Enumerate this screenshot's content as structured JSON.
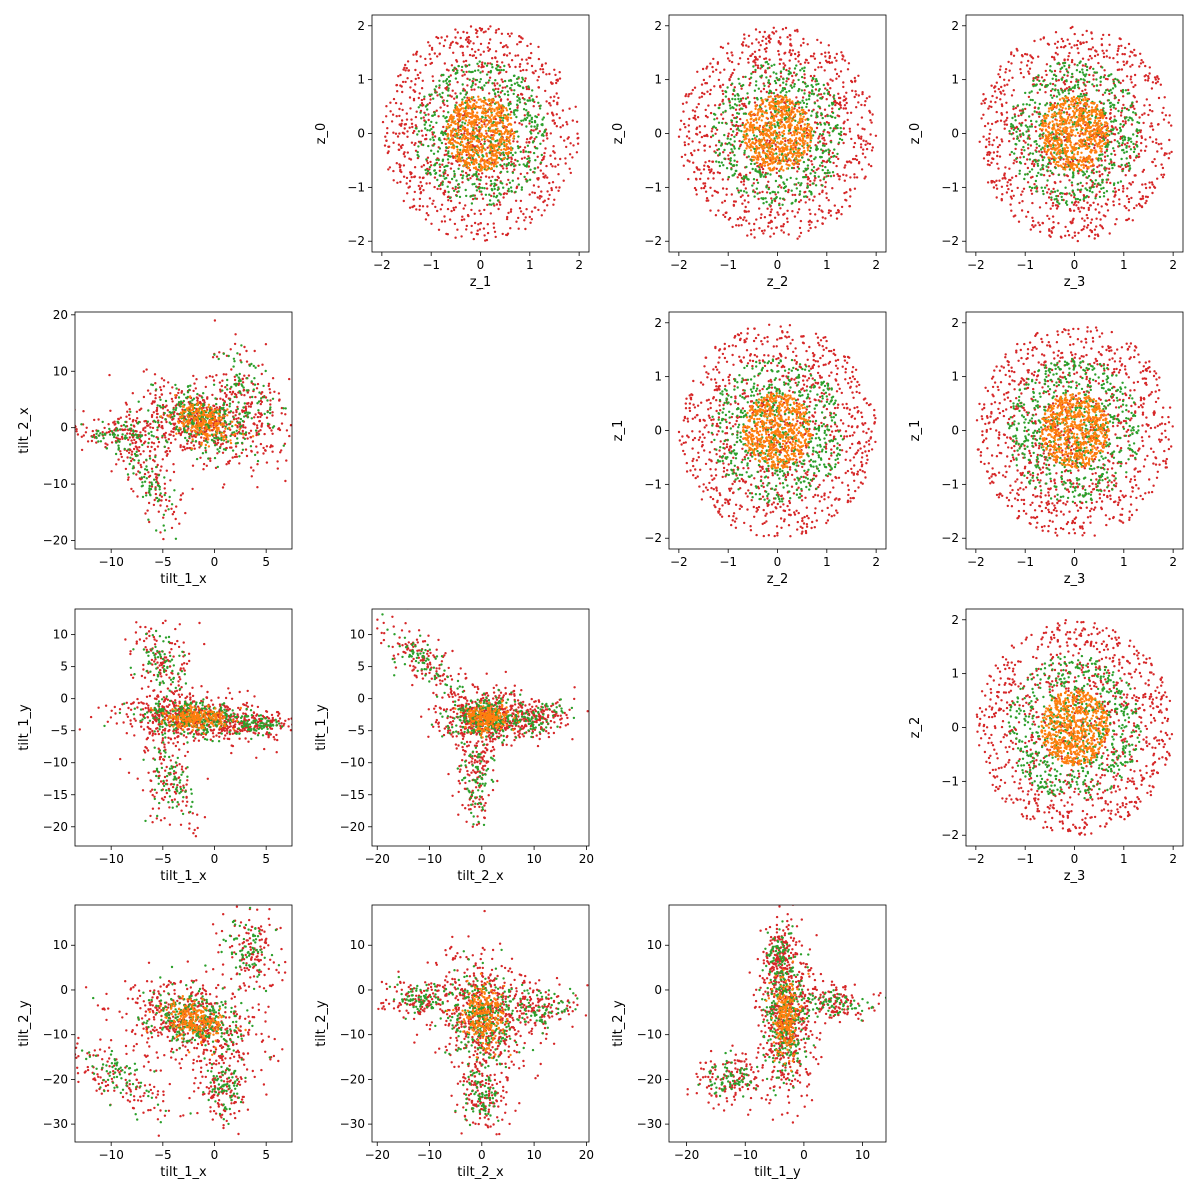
{
  "chart_data": {
    "type": "scatter",
    "colors": {
      "inner": "#ff7f0e",
      "middle": "#2ca02c",
      "outer": "#d62728"
    },
    "series": [
      {
        "color_key": "outer",
        "description_from_image": "red points (largest spread)"
      },
      {
        "color_key": "middle",
        "description_from_image": "green points"
      },
      {
        "color_key": "inner",
        "description_from_image": "orange points (core)"
      }
    ],
    "panels": [
      {
        "xlabel": "z_1",
        "ylabel": "z_0",
        "xlim": [
          -2.2,
          2.2
        ],
        "ylim": [
          -2.2,
          2.2
        ],
        "xticks": [
          -2,
          -1,
          0,
          1,
          2
        ],
        "yticks": [
          -2,
          -1,
          0,
          1,
          2
        ],
        "shape": "ring",
        "radii": [
          0.7,
          1.35,
          2.0
        ]
      },
      {
        "xlabel": "z_2",
        "ylabel": "z_0",
        "xlim": [
          -2.2,
          2.2
        ],
        "ylim": [
          -2.2,
          2.2
        ],
        "xticks": [
          -2,
          -1,
          0,
          1,
          2
        ],
        "yticks": [
          -2,
          -1,
          0,
          1,
          2
        ],
        "shape": "ring",
        "radii": [
          0.7,
          1.35,
          2.0
        ]
      },
      {
        "xlabel": "z_3",
        "ylabel": "z_0",
        "xlim": [
          -2.2,
          2.2
        ],
        "ylim": [
          -2.2,
          2.2
        ],
        "xticks": [
          -2,
          -1,
          0,
          1,
          2
        ],
        "yticks": [
          -2,
          -1,
          0,
          1,
          2
        ],
        "shape": "ring",
        "radii": [
          0.7,
          1.35,
          2.0
        ]
      },
      {
        "xlabel": "tilt_1_x",
        "ylabel": "tilt_2_x",
        "xlim": [
          -13.5,
          7.5
        ],
        "ylim": [
          -21.5,
          20.5
        ],
        "xticks": [
          -10,
          -5,
          0,
          5
        ],
        "yticks": [
          -20,
          -10,
          0,
          10,
          20
        ],
        "shape": "blob",
        "clusters": [
          {
            "center": [
              -1.0,
              1.0
            ],
            "spread": [
              2.8,
              4.0
            ],
            "rot": 0.5
          },
          {
            "center": [
              3.5,
              6.5
            ],
            "spread": [
              1.8,
              5.0
            ],
            "rot": 0.3
          },
          {
            "center": [
              -6.5,
              -8.5
            ],
            "spread": [
              1.2,
              5.5
            ],
            "rot": 0.25
          },
          {
            "center": [
              -9.0,
              -1.0
            ],
            "spread": [
              2.5,
              1.8
            ],
            "rot": 0.0
          }
        ]
      },
      {
        "xlabel": "z_2",
        "ylabel": "z_1",
        "xlim": [
          -2.2,
          2.2
        ],
        "ylim": [
          -2.2,
          2.2
        ],
        "xticks": [
          -2,
          -1,
          0,
          1,
          2
        ],
        "yticks": [
          -2,
          -1,
          0,
          1,
          2
        ],
        "shape": "ring",
        "radii": [
          0.7,
          1.35,
          2.0
        ]
      },
      {
        "xlabel": "z_3",
        "ylabel": "z_1",
        "xlim": [
          -2.2,
          2.2
        ],
        "ylim": [
          -2.2,
          2.2
        ],
        "xticks": [
          -2,
          -1,
          0,
          1,
          2
        ],
        "yticks": [
          -2,
          -1,
          0,
          1,
          2
        ],
        "shape": "ring",
        "radii": [
          0.7,
          1.35,
          2.0
        ]
      },
      {
        "xlabel": "tilt_1_x",
        "ylabel": "tilt_1_y",
        "xlim": [
          -13.5,
          7.5
        ],
        "ylim": [
          -23.0,
          14.0
        ],
        "xticks": [
          -10,
          -5,
          0,
          5
        ],
        "yticks": [
          -20,
          -15,
          -10,
          -5,
          0,
          5,
          10
        ],
        "shape": "blob",
        "clusters": [
          {
            "center": [
              -2.0,
              -3.0
            ],
            "spread": [
              3.5,
              1.8
            ],
            "rot": -0.1
          },
          {
            "center": [
              -5.0,
              5.0
            ],
            "spread": [
              1.5,
              3.5
            ],
            "rot": 0.2
          },
          {
            "center": [
              -4.0,
              -13.0
            ],
            "spread": [
              1.5,
              4.0
            ],
            "rot": 0.1
          },
          {
            "center": [
              4.0,
              -4.0
            ],
            "spread": [
              1.8,
              1.0
            ],
            "rot": 0.0
          }
        ]
      },
      {
        "xlabel": "tilt_2_x",
        "ylabel": "tilt_1_y",
        "xlim": [
          -21.0,
          20.5
        ],
        "ylim": [
          -23.0,
          14.0
        ],
        "xticks": [
          -20,
          -10,
          0,
          10,
          20
        ],
        "yticks": [
          -20,
          -15,
          -10,
          -5,
          0,
          5,
          10
        ],
        "shape": "blob",
        "clusters": [
          {
            "center": [
              1.0,
              -3.0
            ],
            "spread": [
              4.5,
              2.2
            ],
            "rot": 0.0
          },
          {
            "center": [
              -11.0,
              6.0
            ],
            "spread": [
              4.5,
              1.8
            ],
            "rot": -0.55
          },
          {
            "center": [
              -1.0,
              -12.0
            ],
            "spread": [
              1.8,
              4.5
            ],
            "rot": 0.0
          },
          {
            "center": [
              11.0,
              -3.0
            ],
            "spread": [
              3.5,
              1.5
            ],
            "rot": 0.2
          }
        ]
      },
      {
        "xlabel": "z_3",
        "ylabel": "z_2",
        "xlim": [
          -2.2,
          2.2
        ],
        "ylim": [
          -2.2,
          2.2
        ],
        "xticks": [
          -2,
          -1,
          0,
          1,
          2
        ],
        "yticks": [
          -2,
          -1,
          0,
          1,
          2
        ],
        "shape": "ring",
        "radii": [
          0.7,
          1.35,
          2.0
        ]
      },
      {
        "xlabel": "tilt_1_x",
        "ylabel": "tilt_2_y",
        "xlim": [
          -13.5,
          7.5
        ],
        "ylim": [
          -34.0,
          19.0
        ],
        "xticks": [
          -10,
          -5,
          0,
          5
        ],
        "yticks": [
          -30,
          -20,
          -10,
          0,
          10
        ],
        "shape": "blob",
        "clusters": [
          {
            "center": [
              -2.0,
              -7.0
            ],
            "spread": [
              3.0,
              5.0
            ],
            "rot": 0.3
          },
          {
            "center": [
              3.5,
              8.0
            ],
            "spread": [
              1.5,
              5.5
            ],
            "rot": 0.0
          },
          {
            "center": [
              -9.0,
              -20.0
            ],
            "spread": [
              2.0,
              5.0
            ],
            "rot": 0.5
          },
          {
            "center": [
              1.0,
              -22.0
            ],
            "spread": [
              1.2,
              4.5
            ],
            "rot": 0.0
          }
        ]
      },
      {
        "xlabel": "tilt_2_x",
        "ylabel": "tilt_2_y",
        "xlim": [
          -21.0,
          20.5
        ],
        "ylim": [
          -34.0,
          19.0
        ],
        "xticks": [
          -20,
          -10,
          0,
          10,
          20
        ],
        "yticks": [
          -30,
          -20,
          -10,
          0,
          10
        ],
        "shape": "blob",
        "clusters": [
          {
            "center": [
              0.5,
              -6.0
            ],
            "spread": [
              4.5,
              7.0
            ],
            "rot": 0.0
          },
          {
            "center": [
              -12.0,
              -2.0
            ],
            "spread": [
              4.0,
              2.0
            ],
            "rot": 0.0
          },
          {
            "center": [
              11.0,
              -4.0
            ],
            "spread": [
              3.5,
              3.0
            ],
            "rot": 0.0
          },
          {
            "center": [
              0.0,
              -24.0
            ],
            "spread": [
              2.5,
              4.0
            ],
            "rot": 0.0
          }
        ]
      },
      {
        "xlabel": "tilt_1_y",
        "ylabel": "tilt_2_y",
        "xlim": [
          -23.0,
          14.0
        ],
        "ylim": [
          -34.0,
          19.0
        ],
        "xticks": [
          -20,
          -10,
          0,
          10
        ],
        "yticks": [
          -30,
          -20,
          -10,
          0,
          10
        ],
        "shape": "blob",
        "clusters": [
          {
            "center": [
              -3.0,
              -6.0
            ],
            "spread": [
              2.5,
              9.0
            ],
            "rot": 0.0
          },
          {
            "center": [
              5.0,
              -3.0
            ],
            "spread": [
              3.5,
              2.0
            ],
            "rot": 0.0
          },
          {
            "center": [
              -13.0,
              -20.0
            ],
            "spread": [
              3.0,
              3.0
            ],
            "rot": 0.4
          },
          {
            "center": [
              -4.0,
              8.0
            ],
            "spread": [
              1.5,
              4.0
            ],
            "rot": 0.0
          }
        ]
      }
    ]
  }
}
